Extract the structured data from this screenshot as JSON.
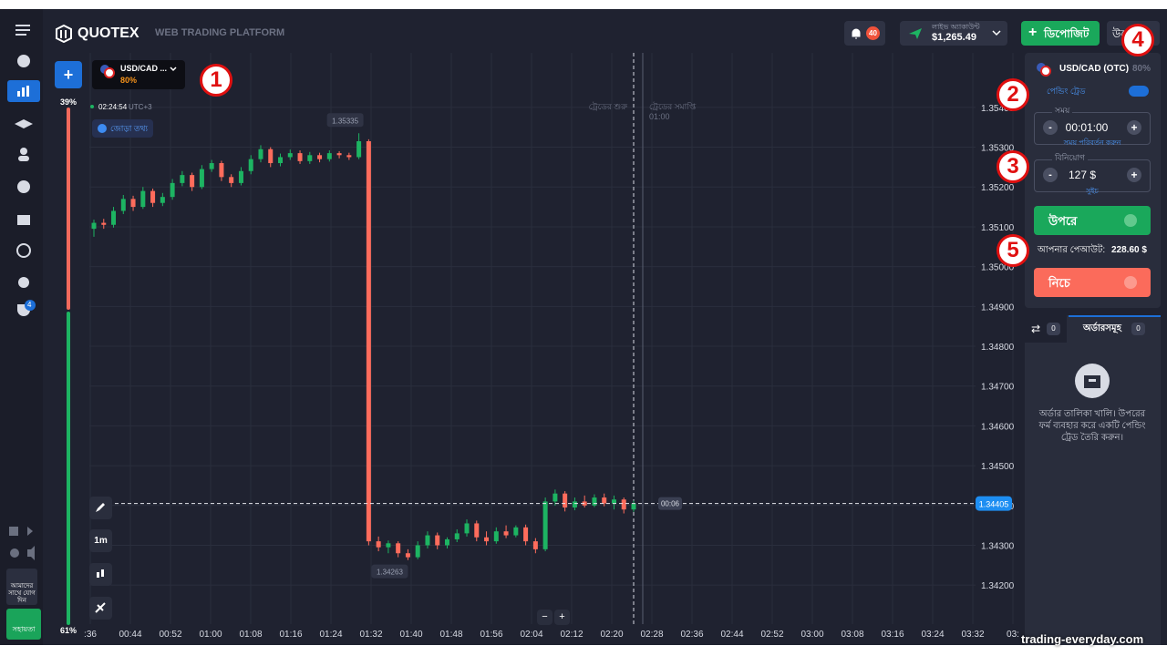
{
  "sidebar": {
    "tournament_badge": "4",
    "join_text": "আমাদের সাথে যোগ দিন",
    "help": "সহায়তা"
  },
  "header": {
    "logo": "QUOTEX",
    "subtitle": "WEB TRADING PLATFORM",
    "notifications": "40",
    "account_type": "লাইভ অ্যাকাউন্ট",
    "balance": "$1,265.49",
    "deposit": "ডিপোজিট",
    "withdraw": "উত্তোলন"
  },
  "asset_bar": {
    "add_chart": "+",
    "pair": "USD/CAD ...",
    "payout": "80%",
    "time": "02:24:54",
    "timezone": "UTC+3",
    "pair_info": "জোড়া তথ্য"
  },
  "sentiment": {
    "up": "39%",
    "down": "61%"
  },
  "chart": {
    "type": "candlestick",
    "up_color": "#1db462",
    "down_color": "#ff6c5c",
    "ylim": [
      1.34102,
      1.35537
    ],
    "yticks": [
      {
        "value": 1.342,
        "label": "1.34200"
      },
      {
        "value": 1.343,
        "label": "1.34300"
      },
      {
        "value": 1.344,
        "label": "1.34400"
      },
      {
        "value": 1.345,
        "label": "1.34500"
      },
      {
        "value": 1.346,
        "label": "1.34600"
      },
      {
        "value": 1.347,
        "label": "1.34700"
      },
      {
        "value": 1.348,
        "label": "1.34800"
      },
      {
        "value": 1.349,
        "label": "1.34900"
      },
      {
        "value": 1.35,
        "label": "1.35000"
      },
      {
        "value": 1.351,
        "label": "1.35100"
      },
      {
        "value": 1.352,
        "label": "1.35200"
      },
      {
        "value": 1.353,
        "label": "1.35300"
      },
      {
        "value": 1.354,
        "label": "1.35400"
      }
    ],
    "x_labels": [
      ":36",
      "00:44",
      "00:52",
      "01:00",
      "01:08",
      "01:16",
      "01:24",
      "01:32",
      "01:40",
      "01:48",
      "01:56",
      "02:04",
      "02:12",
      "02:20",
      "02:28",
      "02:36",
      "02:44",
      "02:52",
      "03:00",
      "03:08",
      "03:16",
      "03:24",
      "03:32",
      "03:"
    ],
    "candles": [
      [
        1.35095,
        1.35118,
        1.35075,
        1.3511
      ],
      [
        1.3511,
        1.3512,
        1.35095,
        1.35105
      ],
      [
        1.35105,
        1.3515,
        1.35098,
        1.3514
      ],
      [
        1.3514,
        1.3518,
        1.35132,
        1.3517
      ],
      [
        1.3517,
        1.35178,
        1.3514,
        1.3515
      ],
      [
        1.3515,
        1.352,
        1.35145,
        1.3519
      ],
      [
        1.3519,
        1.35196,
        1.3515,
        1.3516
      ],
      [
        1.3516,
        1.35185,
        1.35152,
        1.35175
      ],
      [
        1.35175,
        1.3522,
        1.35168,
        1.3521
      ],
      [
        1.3521,
        1.3524,
        1.35202,
        1.3523
      ],
      [
        1.3523,
        1.35236,
        1.3519,
        1.352
      ],
      [
        1.352,
        1.35255,
        1.35195,
        1.35245
      ],
      [
        1.35245,
        1.35268,
        1.35238,
        1.3526
      ],
      [
        1.3526,
        1.35266,
        1.35215,
        1.35225
      ],
      [
        1.35225,
        1.35232,
        1.352,
        1.3521
      ],
      [
        1.3521,
        1.3525,
        1.35204,
        1.3524
      ],
      [
        1.3524,
        1.3528,
        1.35232,
        1.3527
      ],
      [
        1.3527,
        1.35305,
        1.35262,
        1.35295
      ],
      [
        1.35295,
        1.353,
        1.3525,
        1.3526
      ],
      [
        1.3526,
        1.35284,
        1.35252,
        1.35275
      ],
      [
        1.35275,
        1.35294,
        1.35268,
        1.35285
      ],
      [
        1.35285,
        1.35292,
        1.35258,
        1.35265
      ],
      [
        1.35265,
        1.35288,
        1.35258,
        1.3528
      ],
      [
        1.3528,
        1.35286,
        1.35262,
        1.3527
      ],
      [
        1.3527,
        1.35292,
        1.35264,
        1.35285
      ],
      [
        1.35285,
        1.3529,
        1.35272,
        1.3528
      ],
      [
        1.3528,
        1.35286,
        1.35268,
        1.35275
      ],
      [
        1.35275,
        1.35335,
        1.3527,
        1.35315
      ],
      [
        1.35315,
        1.3532,
        1.343,
        1.3431
      ],
      [
        1.3431,
        1.34322,
        1.34285,
        1.34295
      ],
      [
        1.34295,
        1.34312,
        1.3428,
        1.34305
      ],
      [
        1.34305,
        1.3431,
        1.3427,
        1.3428
      ],
      [
        1.3428,
        1.3429,
        1.34263,
        1.3427
      ],
      [
        1.3427,
        1.3431,
        1.34265,
        1.343
      ],
      [
        1.343,
        1.34335,
        1.34292,
        1.34325
      ],
      [
        1.34325,
        1.34332,
        1.3429,
        1.343
      ],
      [
        1.343,
        1.3432,
        1.34292,
        1.34315
      ],
      [
        1.34315,
        1.3434,
        1.34308,
        1.3433
      ],
      [
        1.3433,
        1.34365,
        1.34322,
        1.34355
      ],
      [
        1.34355,
        1.34362,
        1.3431,
        1.3432
      ],
      [
        1.3432,
        1.34335,
        1.343,
        1.3431
      ],
      [
        1.3431,
        1.34345,
        1.34304,
        1.34335
      ],
      [
        1.34335,
        1.3435,
        1.34318,
        1.34325
      ],
      [
        1.34325,
        1.3435,
        1.3432,
        1.34345
      ],
      [
        1.34345,
        1.34352,
        1.343,
        1.3431
      ],
      [
        1.3431,
        1.34318,
        1.3428,
        1.3429
      ],
      [
        1.3429,
        1.3442,
        1.34285,
        1.3441
      ],
      [
        1.3441,
        1.3444,
        1.344,
        1.3443
      ],
      [
        1.3443,
        1.34436,
        1.34385,
        1.34395
      ],
      [
        1.34395,
        1.3442,
        1.34388,
        1.3441
      ],
      [
        1.3441,
        1.34425,
        1.34395,
        1.344
      ],
      [
        1.344,
        1.34428,
        1.34396,
        1.3442
      ],
      [
        1.3442,
        1.3443,
        1.34398,
        1.34405
      ],
      [
        1.34405,
        1.34425,
        1.3439,
        1.34415
      ],
      [
        1.34415,
        1.3442,
        1.3438,
        1.3439
      ],
      [
        1.3439,
        1.34412,
        1.34384,
        1.34405
      ]
    ],
    "high_label": 1.35335,
    "low_label": 1.34263,
    "current_price": 1.34405,
    "timer": "00:06",
    "trade_start": "ট্রেডের শুরু",
    "trade_end": "ট্রেডের সমাপ্তি",
    "expiry": "01:00",
    "timeframe": "1m",
    "zoom_out": "−",
    "zoom_in": "+"
  },
  "trade_panel": {
    "pair": "USD/CAD (OTC)",
    "payout": "80%",
    "pending": "পেন্ডিং ট্রেড",
    "time_label": "সময়",
    "time_minus": "-",
    "time_value": "00:01:00",
    "time_plus": "+",
    "time_change": "সময় পরিবর্তন করুন",
    "invest_label": "বিনিয়োগ",
    "invest_minus": "-",
    "invest_value": "127 $",
    "invest_plus": "+",
    "switch": "সুইচ",
    "up": "উপরে",
    "payout_label": "আপনার পেআউট:",
    "payout_value": "228.60 $",
    "down": "নিচে"
  },
  "orders": {
    "trades_count": "0",
    "tab": "অর্ডারসমূহ",
    "orders_count": "0",
    "empty": "অর্ডার তালিকা খালি। উপরের ফর্ম ব্যবহার করে একটি পেন্ডিং ট্রেড তৈরি করুন।"
  },
  "annotations": [
    "1",
    "2",
    "3",
    "4",
    "5"
  ],
  "watermark": "trading-everyday.com"
}
